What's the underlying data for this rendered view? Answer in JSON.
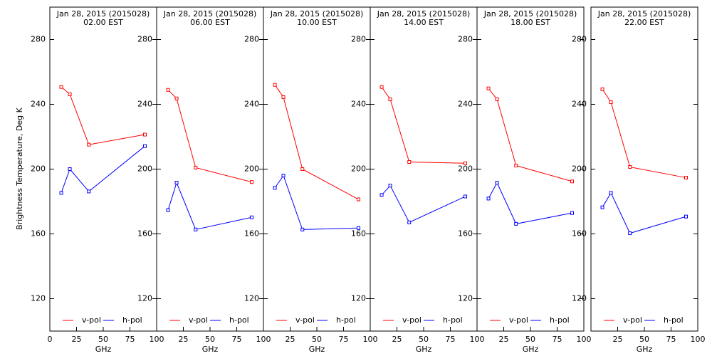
{
  "chart_data": [
    {
      "type": "line",
      "title": "Jan 28, 2015 (2015028)",
      "subtitle": "02.00 EST",
      "xlabel": "GHz",
      "ylabel": "Brightness Temperature, Deg K",
      "x": [
        10.7,
        18.7,
        36.5,
        89
      ],
      "xlim": [
        0,
        100
      ],
      "xticks": [
        0,
        25,
        50,
        75,
        100
      ],
      "ylim": [
        100,
        300
      ],
      "yticks": [
        120,
        160,
        200,
        240,
        280
      ],
      "series": [
        {
          "name": "v-pol",
          "color": "#ff0000",
          "values": [
            250.7,
            246.2,
            215.1,
            221.3
          ]
        },
        {
          "name": "h-pol",
          "color": "#0000ff",
          "values": [
            185.3,
            200.0,
            186.2,
            214.2
          ]
        }
      ]
    },
    {
      "type": "line",
      "title": "Jan 28, 2015 (2015028)",
      "subtitle": "06.00 EST",
      "xlabel": "GHz",
      "x": [
        10.7,
        18.7,
        36.5,
        89
      ],
      "xlim": [
        0,
        100
      ],
      "xticks": [
        25,
        50,
        75,
        100
      ],
      "ylim": [
        100,
        300
      ],
      "yticks": [
        120,
        160,
        200,
        240,
        280
      ],
      "series": [
        {
          "name": "v-pol",
          "color": "#ff0000",
          "values": [
            248.9,
            243.6,
            200.9,
            192.0
          ]
        },
        {
          "name": "h-pol",
          "color": "#0000ff",
          "values": [
            174.7,
            191.6,
            162.7,
            170.2
          ]
        }
      ]
    },
    {
      "type": "line",
      "title": "Jan 28, 2015 (2015028)",
      "subtitle": "10.00 EST",
      "xlabel": "GHz",
      "x": [
        10.7,
        18.7,
        36.5,
        89
      ],
      "xlim": [
        0,
        100
      ],
      "xticks": [
        25,
        50,
        75,
        100
      ],
      "ylim": [
        100,
        300
      ],
      "yticks": [
        120,
        160,
        200,
        240,
        280
      ],
      "series": [
        {
          "name": "v-pol",
          "color": "#ff0000",
          "values": [
            252.0,
            244.4,
            200.0,
            181.3
          ]
        },
        {
          "name": "h-pol",
          "color": "#0000ff",
          "values": [
            188.4,
            196.0,
            162.7,
            163.6
          ]
        }
      ]
    },
    {
      "type": "line",
      "title": "Jan 28, 2015 (2015028)",
      "subtitle": "14.00 EST",
      "xlabel": "GHz",
      "x": [
        10.7,
        18.7,
        36.5,
        89
      ],
      "xlim": [
        0,
        100
      ],
      "xticks": [
        25,
        50,
        75,
        100
      ],
      "ylim": [
        100,
        300
      ],
      "yticks": [
        120,
        160,
        200,
        240,
        280
      ],
      "series": [
        {
          "name": "v-pol",
          "color": "#ff0000",
          "values": [
            250.7,
            243.1,
            204.4,
            203.6
          ]
        },
        {
          "name": "h-pol",
          "color": "#0000ff",
          "values": [
            184.0,
            189.8,
            167.1,
            183.1
          ]
        }
      ]
    },
    {
      "type": "line",
      "title": "Jan 28, 2015 (2015028)",
      "subtitle": "18.00 EST",
      "xlabel": "GHz",
      "x": [
        10.7,
        18.7,
        36.5,
        89
      ],
      "xlim": [
        0,
        100
      ],
      "xticks": [
        25,
        50,
        75,
        100
      ],
      "ylim": [
        100,
        300
      ],
      "yticks": [
        120,
        160,
        200,
        240,
        280
      ],
      "series": [
        {
          "name": "v-pol",
          "color": "#ff0000",
          "values": [
            249.8,
            243.1,
            202.2,
            192.4
          ]
        },
        {
          "name": "h-pol",
          "color": "#0000ff",
          "values": [
            181.8,
            191.6,
            166.2,
            172.9
          ]
        }
      ]
    },
    {
      "type": "line",
      "title": "Jan 28, 2015 (2015028)",
      "subtitle": "22.00 EST",
      "xlabel": "GHz",
      "x": [
        10.7,
        18.7,
        36.5,
        89
      ],
      "xlim": [
        0,
        100
      ],
      "xticks": [
        25,
        50,
        75,
        100
      ],
      "ylim": [
        100,
        300
      ],
      "yticks": [
        120,
        160,
        200,
        240,
        280
      ],
      "series": [
        {
          "name": "v-pol",
          "color": "#ff0000",
          "values": [
            249.3,
            241.3,
            201.3,
            194.7
          ]
        },
        {
          "name": "h-pol",
          "color": "#0000ff",
          "values": [
            176.4,
            185.3,
            160.4,
            170.7
          ]
        }
      ]
    }
  ]
}
